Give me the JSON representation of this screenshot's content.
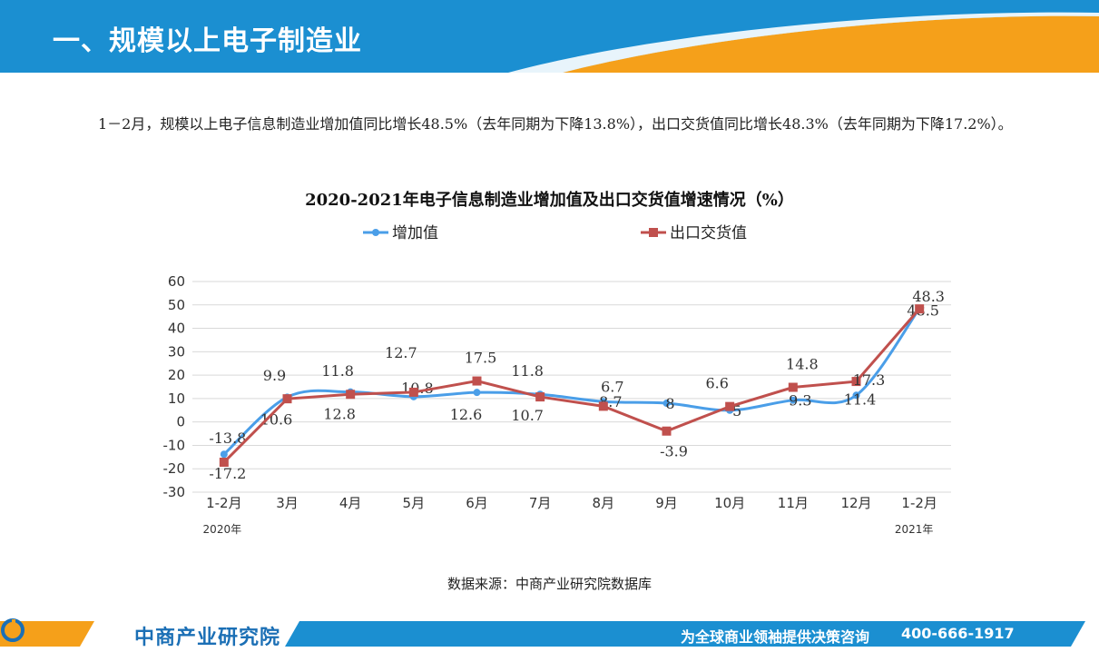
{
  "header": {
    "title": "一、规模以上电子制造业"
  },
  "intro": {
    "text": "1－2月，规模以上电子信息制造业增加值同比增长48.5%（去年同期为下降13.8%），出口交货值同比增长48.3%（去年同期为下降17.2%）。"
  },
  "chart_data": {
    "type": "line",
    "title": "2020-2021年电子信息制造业增加值及出口交货值增速情况（%）",
    "categories": [
      "1-2月",
      "3月",
      "4月",
      "5月",
      "6月",
      "7月",
      "8月",
      "9月",
      "10月",
      "11月",
      "12月",
      "1-2月"
    ],
    "year_labels": {
      "start": "2020年",
      "end": "2021年"
    },
    "ylim": [
      -30,
      60
    ],
    "yticks": [
      -30,
      -20,
      -10,
      0,
      10,
      20,
      30,
      40,
      50,
      60
    ],
    "grid": true,
    "legend": "top",
    "series": [
      {
        "name": "增加值",
        "color": "#4a9ee8",
        "marker": "circle",
        "values": [
          -13.8,
          10.6,
          12.8,
          10.8,
          12.6,
          11.8,
          8.7,
          8,
          5,
          9.3,
          11.4,
          48.5
        ],
        "labels": [
          "-13.8",
          "10.6",
          "12.8",
          "10.8",
          "12.6",
          "11.8",
          "8.7",
          "8",
          "5",
          "9.3",
          "11.4",
          "48.5"
        ]
      },
      {
        "name": "出口交货值",
        "color": "#c0504d",
        "marker": "square",
        "values": [
          -17.2,
          9.9,
          11.8,
          12.7,
          17.5,
          10.7,
          6.7,
          -3.9,
          6.6,
          14.8,
          17.3,
          48.3
        ],
        "labels": [
          "-17.2",
          "9.9",
          "11.8",
          "12.7",
          "17.5",
          "10.7",
          "6.7",
          "-3.9",
          "6.6",
          "14.8",
          "17.3",
          "48.3"
        ]
      }
    ]
  },
  "source": {
    "text": "数据来源：中商产业研究院数据库"
  },
  "footer": {
    "logo_text": "中商产业研究院",
    "slogan": "为全球商业领袖提供决策咨询",
    "phone": "400-666-1917"
  },
  "colors": {
    "brand_blue": "#1b8fd1",
    "brand_orange": "#f5a01a"
  }
}
